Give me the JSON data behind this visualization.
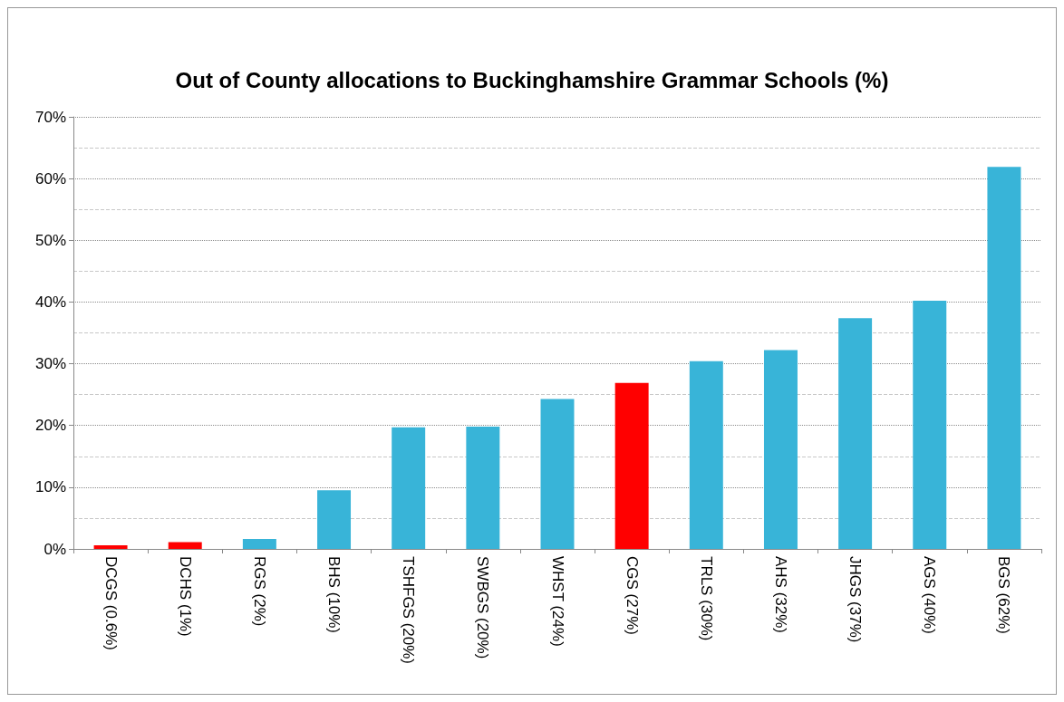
{
  "chart_data": {
    "type": "bar",
    "title": "Out of County allocations to Buckinghamshire Grammar Schools (%)",
    "categories": [
      "DCGS (0.6%)",
      "DCHS (1%)",
      "RGS (2%)",
      "BHS (10%)",
      "TSHFGS (20%)",
      "SWBGS (20%)",
      "WHST (24%)",
      "CGS (27%)",
      "TRLS (30%)",
      "AHS (32%)",
      "JHGS (37%)",
      "AGS (40%)",
      "BGS (62%)"
    ],
    "values": [
      0.6,
      1.1,
      1.6,
      9.5,
      19.7,
      19.8,
      24.3,
      26.9,
      30.4,
      32.2,
      37.4,
      40.2,
      61.9
    ],
    "colors": [
      "#ff0000",
      "#ff0000",
      "#38b4d8",
      "#38b4d8",
      "#38b4d8",
      "#38b4d8",
      "#38b4d8",
      "#ff0000",
      "#38b4d8",
      "#38b4d8",
      "#38b4d8",
      "#38b4d8",
      "#38b4d8"
    ],
    "ylim": [
      0,
      70
    ],
    "yticks": [
      {
        "value": 0,
        "label": "0%"
      },
      {
        "value": 10,
        "label": "10%"
      },
      {
        "value": 20,
        "label": "20%"
      },
      {
        "value": 30,
        "label": "30%"
      },
      {
        "value": 40,
        "label": "40%"
      },
      {
        "value": 50,
        "label": "50%"
      },
      {
        "value": 60,
        "label": "60%"
      },
      {
        "value": 70,
        "label": "70%"
      }
    ],
    "grid": "y"
  }
}
